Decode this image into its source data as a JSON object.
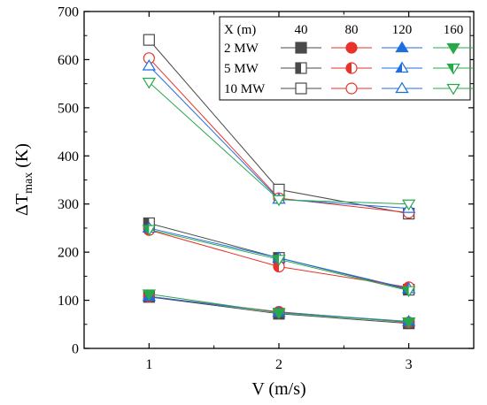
{
  "chart_data": {
    "type": "line",
    "xlabel": "V (m/s)",
    "ylabel_main": "ΔT",
    "ylabel_sub": "max",
    "ylabel_unit": " (K)",
    "x": [
      1,
      2,
      3
    ],
    "x_tick_labels": [
      "1",
      "2",
      "3"
    ],
    "xlim": [
      0.5,
      3.5
    ],
    "ylim": [
      0,
      700
    ],
    "y_ticks": [
      0,
      100,
      200,
      300,
      400,
      500,
      600,
      700
    ],
    "y_tick_labels": [
      "0",
      "100",
      "200",
      "300",
      "400",
      "500",
      "600",
      "700"
    ],
    "grid": false,
    "legend_position": "top-right",
    "legend": {
      "header": "X (m)",
      "columns": [
        "40",
        "80",
        "120",
        "160"
      ],
      "rows": [
        "2 MW",
        "5 MW",
        "10 MW"
      ]
    },
    "series": [
      {
        "name": "2 MW, X = 40 m",
        "power": "2 MW",
        "distance": "40",
        "values": [
          107,
          72,
          52
        ]
      },
      {
        "name": "2 MW, X = 80 m",
        "power": "2 MW",
        "distance": "80",
        "values": [
          108,
          76,
          54
        ]
      },
      {
        "name": "2 MW, X = 120 m",
        "power": "2 MW",
        "distance": "120",
        "values": [
          108,
          75,
          56
        ]
      },
      {
        "name": "2 MW, X = 160 m",
        "power": "2 MW",
        "distance": "160",
        "values": [
          113,
          74,
          55
        ]
      },
      {
        "name": "5 MW, X = 40 m",
        "power": "5 MW",
        "distance": "40",
        "values": [
          260,
          188,
          122
        ]
      },
      {
        "name": "5 MW, X = 80 m",
        "power": "5 MW",
        "distance": "80",
        "values": [
          246,
          170,
          127
        ]
      },
      {
        "name": "5 MW, X = 120 m",
        "power": "5 MW",
        "distance": "120",
        "values": [
          250,
          188,
          124
        ]
      },
      {
        "name": "5 MW, X = 160 m",
        "power": "5 MW",
        "distance": "160",
        "values": [
          247,
          185,
          120
        ]
      },
      {
        "name": "10 MW, X = 40 m",
        "power": "10 MW",
        "distance": "40",
        "values": [
          641,
          330,
          280
        ]
      },
      {
        "name": "10 MW, X = 80 m",
        "power": "10 MW",
        "distance": "80",
        "values": [
          603,
          312,
          282
        ]
      },
      {
        "name": "10 MW, X = 120 m",
        "power": "10 MW",
        "distance": "120",
        "values": [
          587,
          310,
          291
        ]
      },
      {
        "name": "10 MW, X = 160 m",
        "power": "10 MW",
        "distance": "160",
        "values": [
          553,
          309,
          300
        ]
      }
    ],
    "colors": {
      "40": "#4a4a4a",
      "80": "#e8322a",
      "120": "#1f6ee0",
      "160": "#27a84a"
    },
    "markers": {
      "40": "square",
      "80": "circle",
      "120": "triangle-up",
      "160": "triangle-down"
    },
    "fills": {
      "2 MW": "full",
      "5 MW": "half",
      "10 MW": "open"
    }
  }
}
